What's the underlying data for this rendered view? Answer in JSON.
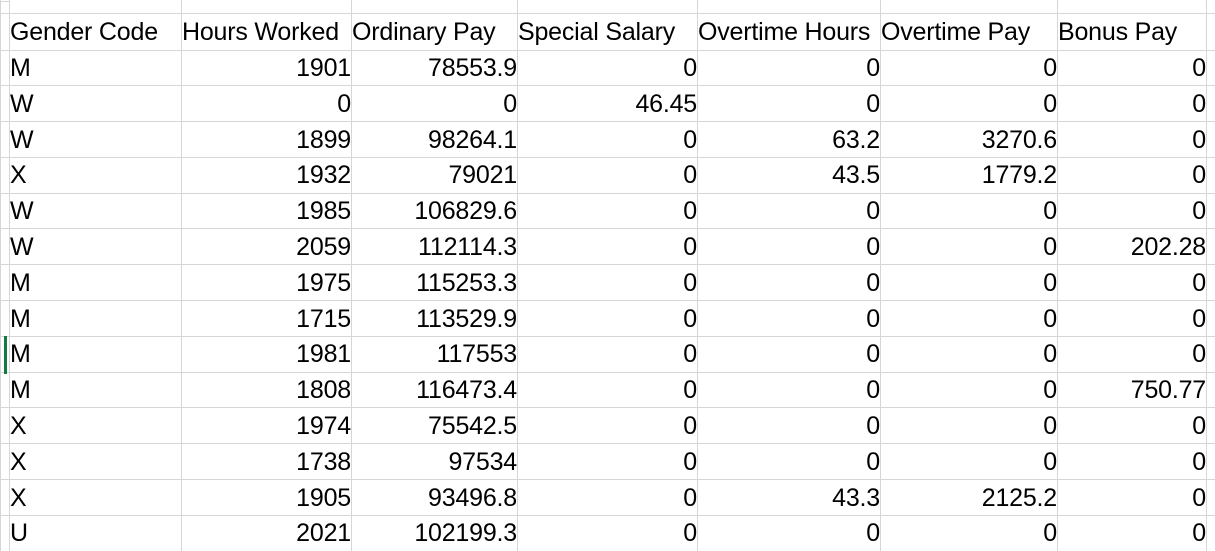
{
  "colors": {
    "background": "#FFFFFF",
    "text": "#000000",
    "gridline": "#D6D6D6",
    "selection_green": "#107C41"
  },
  "table": {
    "columns": [
      {
        "label": "Gender Code",
        "align": "left"
      },
      {
        "label": "Hours Worked",
        "align": "right"
      },
      {
        "label": "Ordinary Pay",
        "align": "right"
      },
      {
        "label": "Special Salary",
        "align": "right"
      },
      {
        "label": "Overtime Hours",
        "align": "right"
      },
      {
        "label": "Overtime Pay",
        "align": "right"
      },
      {
        "label": "Bonus Pay",
        "align": "right"
      }
    ],
    "rows": [
      [
        "M",
        "1901",
        "78553.9",
        "0",
        "0",
        "0",
        "0"
      ],
      [
        "W",
        "0",
        "0",
        "46.45",
        "0",
        "0",
        "0"
      ],
      [
        "W",
        "1899",
        "98264.1",
        "0",
        "63.2",
        "3270.6",
        "0"
      ],
      [
        "X",
        "1932",
        "79021",
        "0",
        "43.5",
        "1779.2",
        "0"
      ],
      [
        "W",
        "1985",
        "106829.6",
        "0",
        "0",
        "0",
        "0"
      ],
      [
        "W",
        "2059",
        "112114.3",
        "0",
        "0",
        "0",
        "202.28"
      ],
      [
        "M",
        "1975",
        "115253.3",
        "0",
        "0",
        "0",
        "0"
      ],
      [
        "M",
        "1715",
        "113529.9",
        "0",
        "0",
        "0",
        "0"
      ],
      [
        "M",
        "1981",
        "117553",
        "0",
        "0",
        "0",
        "0"
      ],
      [
        "M",
        "1808",
        "116473.4",
        "0",
        "0",
        "0",
        "750.77"
      ],
      [
        "X",
        "1974",
        "75542.5",
        "0",
        "0",
        "0",
        "0"
      ],
      [
        "X",
        "1738",
        "97534",
        "0",
        "0",
        "0",
        "0"
      ],
      [
        "X",
        "1905",
        "93496.8",
        "0",
        "43.3",
        "2125.2",
        "0"
      ],
      [
        "U",
        "2021",
        "102199.3",
        "0",
        "0",
        "0",
        "0"
      ]
    ],
    "selected_row_index": 8
  }
}
